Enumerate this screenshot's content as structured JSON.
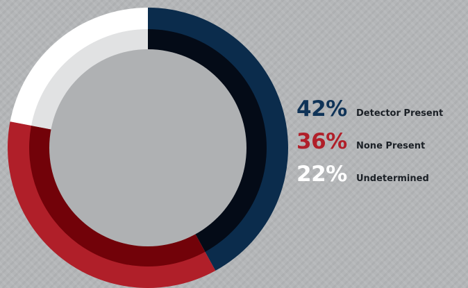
{
  "chart_data": {
    "type": "pie",
    "style": "double-ring donut",
    "start_angle": "12 o'clock",
    "direction": "clockwise",
    "slices": [
      {
        "label": "Detector Present",
        "value": 42,
        "display": "42%",
        "outer_color": "#0b2c4c",
        "inner_color": "#040b17",
        "text_color": "#0f3357"
      },
      {
        "label": "None Present",
        "value": 36,
        "display": "36%",
        "outer_color": "#b01f29",
        "inner_color": "#720209",
        "text_color": "#b01f29"
      },
      {
        "label": "Undetermined",
        "value": 22,
        "display": "22%",
        "outer_color": "#ffffff",
        "inner_color": "#e1e2e3",
        "text_color": "#ffffff"
      }
    ],
    "center_color": "#afb1b3",
    "legend_position": "right"
  }
}
